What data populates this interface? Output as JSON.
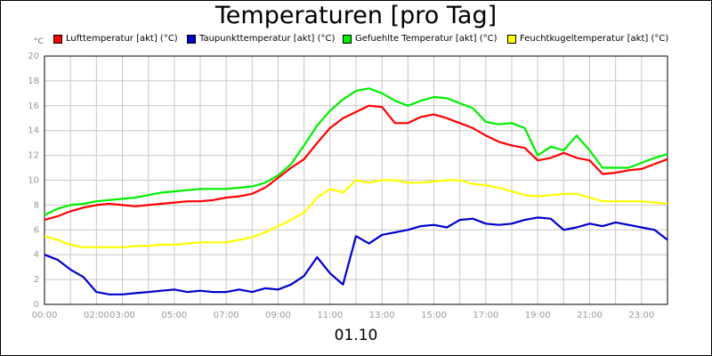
{
  "chart_data": {
    "type": "line",
    "title": "Temperaturen [pro Tag]",
    "ylabel": "°C",
    "xlabel": "01.10",
    "ylim": [
      0,
      20
    ],
    "xlim_hours": [
      0,
      24
    ],
    "grid": true,
    "legend_position": "top",
    "y_ticks": [
      "0",
      "2",
      "4",
      "6",
      "8",
      "10",
      "12",
      "14",
      "16",
      "18",
      "20"
    ],
    "x_ticks": [
      {
        "label": "00:00",
        "hour": 0
      },
      {
        "label": "02:00",
        "hour": 2
      },
      {
        "label": "03:00",
        "hour": 3
      },
      {
        "label": "05:00",
        "hour": 5
      },
      {
        "label": "07:00",
        "hour": 7
      },
      {
        "label": "09:00",
        "hour": 9
      },
      {
        "label": "11:00",
        "hour": 11
      },
      {
        "label": "13:00",
        "hour": 13
      },
      {
        "label": "15:00",
        "hour": 15
      },
      {
        "label": "17:00",
        "hour": 17
      },
      {
        "label": "19:00",
        "hour": 19
      },
      {
        "label": "21:00",
        "hour": 21
      },
      {
        "label": "23:00",
        "hour": 23
      }
    ],
    "x_hours": [
      0,
      0.5,
      1,
      1.5,
      2,
      2.5,
      3,
      3.5,
      4,
      4.5,
      5,
      5.5,
      6,
      6.5,
      7,
      7.5,
      8,
      8.5,
      9,
      9.5,
      10,
      10.5,
      11,
      11.5,
      12,
      12.5,
      13,
      13.5,
      14,
      14.5,
      15,
      15.5,
      16,
      16.5,
      17,
      17.5,
      18,
      18.5,
      19,
      19.5,
      20,
      20.5,
      21,
      21.5,
      22,
      22.5,
      23,
      23.5,
      24
    ],
    "series": [
      {
        "name": "Lufttemperatur [akt] (°C)",
        "color": "#ff0000",
        "values": [
          6.8,
          7.1,
          7.5,
          7.8,
          8.0,
          8.1,
          8.0,
          7.9,
          8.0,
          8.1,
          8.2,
          8.3,
          8.3,
          8.4,
          8.6,
          8.7,
          8.9,
          9.4,
          10.2,
          11.0,
          11.7,
          13.0,
          14.2,
          15.0,
          15.5,
          16.0,
          15.9,
          14.6,
          14.6,
          15.1,
          15.3,
          15.0,
          14.6,
          14.2,
          13.6,
          13.1,
          12.8,
          12.6,
          11.6,
          11.8,
          12.2,
          11.8,
          11.6,
          10.5,
          10.6,
          10.8,
          10.9,
          11.3,
          11.7
        ]
      },
      {
        "name": "Taupunkttemperatur [akt] (°C)",
        "color": "#0000cc",
        "values": [
          4.0,
          3.6,
          2.8,
          2.2,
          1.0,
          0.8,
          0.8,
          0.9,
          1.0,
          1.1,
          1.2,
          1.0,
          1.1,
          1.0,
          1.0,
          1.2,
          1.0,
          1.3,
          1.2,
          1.6,
          2.3,
          3.8,
          2.5,
          1.6,
          5.5,
          4.9,
          5.6,
          5.8,
          6.0,
          6.3,
          6.4,
          6.2,
          6.8,
          6.9,
          6.5,
          6.4,
          6.5,
          6.8,
          7.0,
          6.9,
          6.0,
          6.2,
          6.5,
          6.3,
          6.6,
          6.4,
          6.2,
          6.0,
          5.2
        ]
      },
      {
        "name": "Gefuehlte Temperatur [akt] (°C)",
        "color": "#00ee00",
        "values": [
          7.2,
          7.7,
          8.0,
          8.1,
          8.3,
          8.4,
          8.5,
          8.6,
          8.8,
          9.0,
          9.1,
          9.2,
          9.3,
          9.3,
          9.3,
          9.4,
          9.5,
          9.8,
          10.4,
          11.3,
          12.8,
          14.4,
          15.6,
          16.5,
          17.2,
          17.4,
          17.0,
          16.4,
          16.0,
          16.4,
          16.7,
          16.6,
          16.2,
          15.8,
          14.7,
          14.5,
          14.6,
          14.2,
          12.0,
          12.7,
          12.4,
          13.6,
          12.4,
          11.0,
          11.0,
          11.0,
          11.4,
          11.8,
          12.1
        ]
      },
      {
        "name": "Feuchtkugeltemperatur [akt] (°C)",
        "color": "#ffff00",
        "values": [
          5.5,
          5.2,
          4.8,
          4.6,
          4.6,
          4.6,
          4.6,
          4.7,
          4.7,
          4.8,
          4.8,
          4.9,
          5.0,
          5.0,
          5.0,
          5.2,
          5.4,
          5.8,
          6.3,
          6.8,
          7.4,
          8.6,
          9.3,
          9.0,
          10.0,
          9.8,
          10.0,
          10.0,
          9.8,
          9.8,
          9.9,
          10.0,
          10.0,
          9.7,
          9.6,
          9.4,
          9.1,
          8.8,
          8.7,
          8.8,
          8.9,
          8.9,
          8.6,
          8.3,
          8.3,
          8.3,
          8.3,
          8.2,
          8.1
        ]
      }
    ]
  }
}
